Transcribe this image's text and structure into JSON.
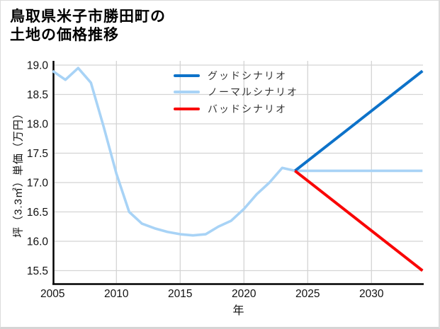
{
  "page": {
    "title_line1": "鳥取県米子市勝田町の",
    "title_line2": "土地の価格推移"
  },
  "chart_data": {
    "type": "line",
    "title": "鳥取県米子市勝田町の土地の価格推移",
    "xlabel": "年",
    "ylabel": "坪（3.3㎡）単価（万円）",
    "xlim": [
      2005,
      2034
    ],
    "ylim": [
      15.28,
      19.07
    ],
    "xticks": [
      2005,
      2010,
      2015,
      2020,
      2025,
      2030
    ],
    "yticks": [
      15.5,
      16.0,
      16.5,
      17.0,
      17.5,
      18.0,
      18.5,
      19.0
    ],
    "grid": true,
    "grid_color": "#d4d4d4",
    "axis_color": "#000000",
    "tick_label_color": "#111111",
    "legend_position": "top-left-inside",
    "series": [
      {
        "name": "グッドシナリオ",
        "color": "#0d72c9",
        "x": [
          2024,
          2034
        ],
        "values": [
          17.2,
          18.9
        ]
      },
      {
        "name": "ノーマルシナリオ",
        "color": "#a8d3f6",
        "x": [
          2005,
          2006,
          2007,
          2008,
          2009,
          2010,
          2011,
          2012,
          2013,
          2014,
          2015,
          2016,
          2017,
          2018,
          2019,
          2020,
          2021,
          2022,
          2023,
          2024,
          2034
        ],
        "values": [
          18.9,
          18.75,
          18.95,
          18.7,
          17.95,
          17.15,
          16.5,
          16.3,
          16.22,
          16.16,
          16.12,
          16.1,
          16.12,
          16.25,
          16.35,
          16.55,
          16.8,
          17.0,
          17.25,
          17.2,
          17.2
        ]
      },
      {
        "name": "バッドシナリオ",
        "color": "#f90606",
        "x": [
          2024,
          2034
        ],
        "values": [
          17.2,
          15.5
        ]
      }
    ]
  }
}
